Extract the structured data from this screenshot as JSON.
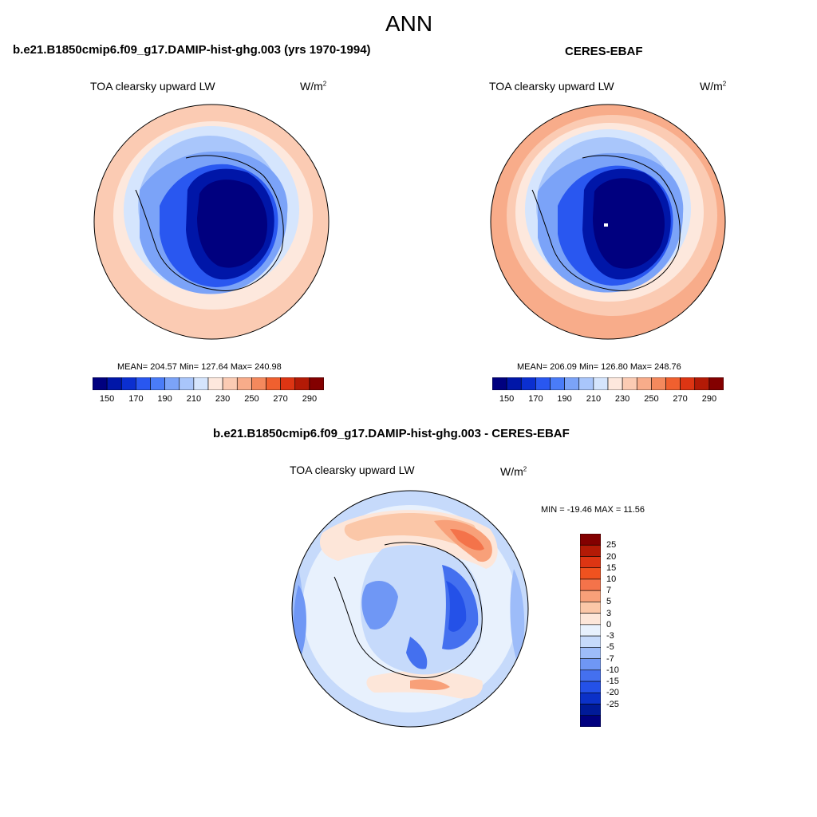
{
  "page_title": "ANN",
  "panels": {
    "model": {
      "header": "b.e21.B1850cmip6.f09_g17.DAMIP-hist-ghg.003 (yrs 1970-1994)",
      "variable": "TOA clearsky upward LW",
      "units": "W/m",
      "units_exp": "2",
      "stats": "MEAN= 204.57  Min= 127.64  Max= 240.98",
      "stats_values": {
        "mean": 204.57,
        "min": 127.64,
        "max": 240.98
      }
    },
    "obs": {
      "header": "CERES-EBAF",
      "variable": "TOA clearsky upward LW",
      "units": "W/m",
      "units_exp": "2",
      "stats": "MEAN= 206.09  Min= 126.80  Max= 248.76",
      "stats_values": {
        "mean": 206.09,
        "min": 126.8,
        "max": 248.76
      }
    },
    "diff": {
      "header": "b.e21.B1850cmip6.f09_g17.DAMIP-hist-ghg.003 - CERES-EBAF",
      "variable": "TOA clearsky upward LW",
      "units": "W/m",
      "units_exp": "2",
      "stats": "MIN = -19.46 MAX =  11.56",
      "stats_values": {
        "min": -19.46,
        "max": 11.56
      }
    }
  },
  "colorbar_abs": {
    "colors": [
      "#00007f",
      "#0016a8",
      "#0b2fd0",
      "#2957f0",
      "#4a7cf8",
      "#7ba3f8",
      "#a9c6fb",
      "#d5e5fd",
      "#fde8dd",
      "#fbcbb3",
      "#f8ac8a",
      "#f4895d",
      "#f0602f",
      "#dd3513",
      "#b31a06",
      "#830000"
    ],
    "tick_labels": [
      "150",
      "170",
      "190",
      "210",
      "230",
      "250",
      "270",
      "290"
    ]
  },
  "colorbar_diff": {
    "colors": [
      "#830000",
      "#b31a06",
      "#dd3513",
      "#f0521f",
      "#f4734a",
      "#f8a079",
      "#fbc7a8",
      "#fde6d9",
      "#e8f1fd",
      "#c6dafb",
      "#9dbcf9",
      "#6f97f5",
      "#4470ef",
      "#2451e8",
      "#0b31c8",
      "#001a98",
      "#00007f"
    ],
    "tick_labels": [
      "25",
      "20",
      "15",
      "10",
      "7",
      "5",
      "3",
      "0",
      "-3",
      "-5",
      "-7",
      "-10",
      "-15",
      "-20",
      "-25"
    ]
  }
}
